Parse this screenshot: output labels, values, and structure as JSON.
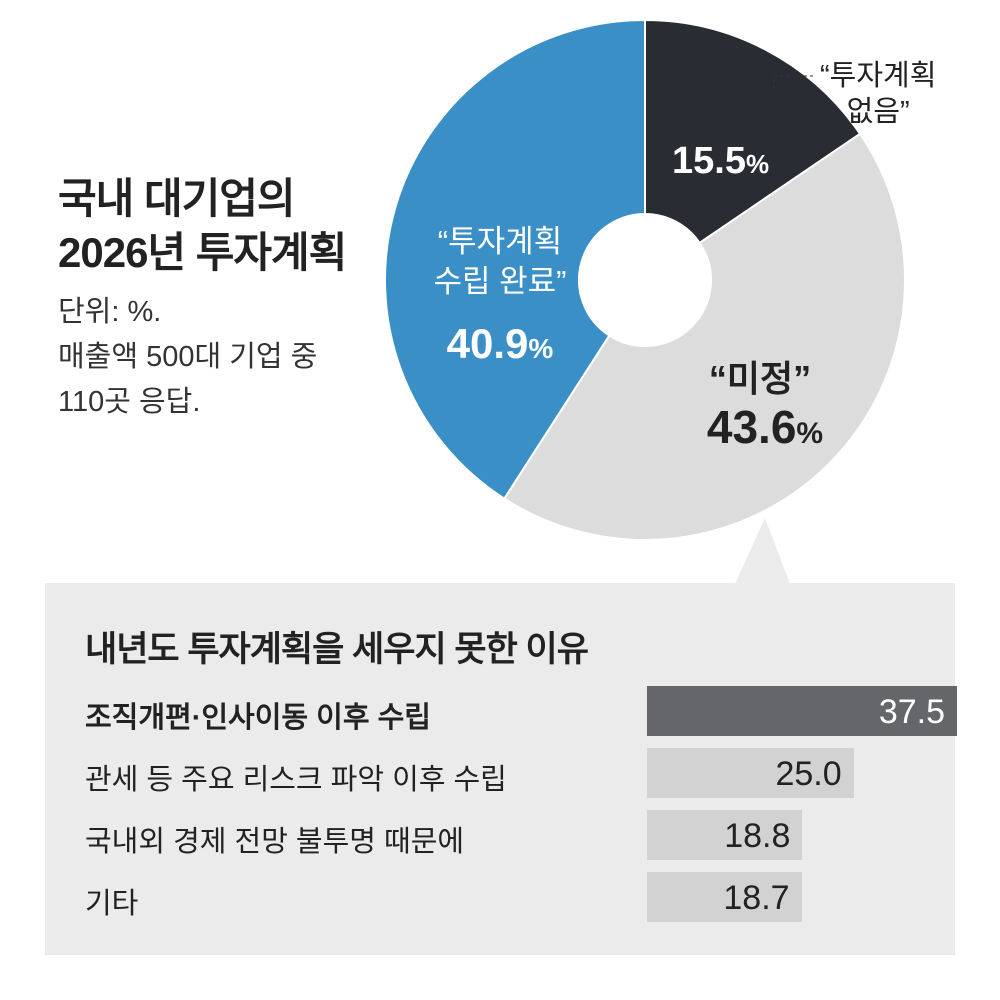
{
  "title_lines": [
    "국내 대기업의",
    "2026년 투자계획"
  ],
  "note_lines": [
    "단위: %.",
    "매출액 500대 기업 중",
    "110곳 응답."
  ],
  "chart_data": [
    {
      "type": "pie",
      "title": "국내 대기업의 2026년 투자계획",
      "unit": "%",
      "slices": [
        {
          "label_lines": [
            "“투자계획",
            "없음”"
          ],
          "value": 15.5,
          "value_text": "15.5",
          "color": "#2a2c34"
        },
        {
          "label_lines": [
            "“미정”"
          ],
          "value": 43.6,
          "value_text": "43.6",
          "color": "#dcdcdc"
        },
        {
          "label_lines": [
            "“투자계획",
            "수립 완료”"
          ],
          "value": 40.9,
          "value_text": "40.9",
          "color": "#3a8fc7"
        }
      ],
      "percent_sign": "%"
    },
    {
      "type": "bar",
      "title": "내년도 투자계획을 세우지 못한 이유",
      "categories": [
        "조직개편·인사이동 이후 수립",
        "관세 등 주요 리스크 파악 이후 수립",
        "국내외 경제 전망 불투명 때문에",
        "기타"
      ],
      "values": [
        37.5,
        25.0,
        18.8,
        18.7
      ],
      "value_texts": [
        "37.5",
        "25.0",
        "18.8",
        "18.7"
      ],
      "colors": [
        "#646669",
        "#d2d2d2",
        "#d2d2d2",
        "#d2d2d2"
      ],
      "xlim": [
        0,
        37.5
      ]
    }
  ]
}
